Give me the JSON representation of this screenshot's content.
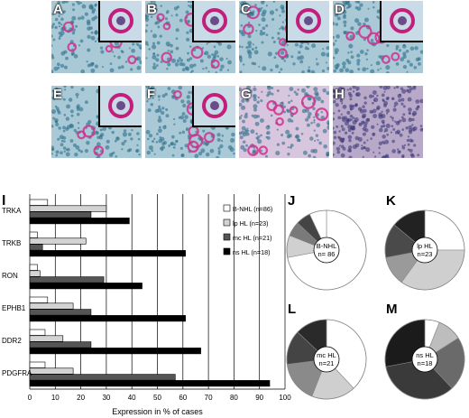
{
  "micrographs": {
    "row1": [
      "A",
      "B",
      "C",
      "D"
    ],
    "row2": [
      "E",
      "F",
      "G",
      "H"
    ]
  },
  "panel_i": {
    "label": "I",
    "xlabel": "Expression in % of cases"
  },
  "pies": [
    {
      "label": "J",
      "center_text": [
        "B-NHL",
        "n= 86"
      ]
    },
    {
      "label": "K",
      "center_text": [
        "lp HL",
        "n=23"
      ]
    },
    {
      "label": "L",
      "center_text": [
        "mc HL",
        "n=21"
      ]
    },
    {
      "label": "M",
      "center_text": [
        "ns HL",
        "n=18"
      ]
    }
  ],
  "colors": {
    "B-NHL": "#ffffff",
    "lp HL": "#cfcfcf",
    "mc HL": "#5a5a5a",
    "ns HL": "#0a0a0a"
  },
  "chart_data": {
    "type": "bar",
    "orientation": "horizontal",
    "categories": [
      "TRKA",
      "TRKB",
      "RON",
      "EPHB1",
      "DDR2",
      "PDGFRA"
    ],
    "series": [
      {
        "name": "B-NHL (n=86)",
        "values": [
          7,
          3,
          3,
          7,
          6,
          6
        ]
      },
      {
        "name": "lp HL (n=23)",
        "values": [
          30,
          22,
          4,
          17,
          13,
          17
        ]
      },
      {
        "name": "mc HL (n=21)",
        "values": [
          24,
          5,
          29,
          24,
          24,
          57
        ]
      },
      {
        "name": "ns HL (n=18)",
        "values": [
          39,
          61,
          44,
          61,
          67,
          94
        ]
      }
    ],
    "xlabel": "Expression in % of cases",
    "xlim": [
      0,
      100
    ],
    "xticks": [
      0,
      10,
      20,
      30,
      40,
      50,
      60,
      70,
      80,
      90,
      100
    ],
    "legend": "top-right",
    "grid": "vertical"
  }
}
